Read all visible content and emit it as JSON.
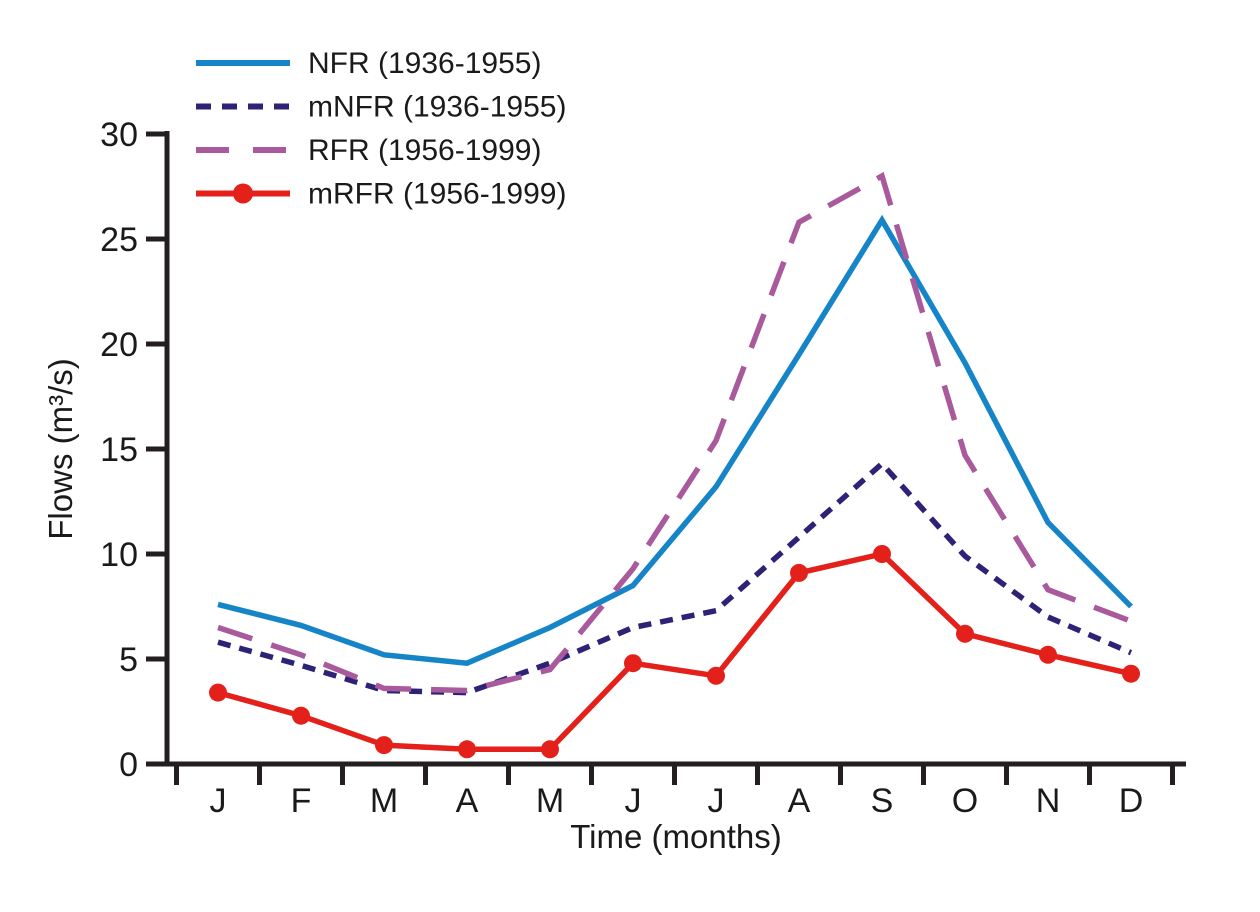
{
  "figure": {
    "background": "#ffffff",
    "axis_color": "#231F20",
    "text_color": "#1a1a1a"
  },
  "chart_data": {
    "type": "line",
    "title": "",
    "xlabel": "Time (months)",
    "ylabel": "Flows (m³/s)",
    "categories": [
      "J",
      "F",
      "M",
      "A",
      "M",
      "J",
      "J",
      "A",
      "S",
      "O",
      "N",
      "D"
    ],
    "yticks": [
      0,
      5,
      10,
      15,
      20,
      25,
      30
    ],
    "ylim": [
      0,
      30
    ],
    "grid": false,
    "legend_position": "top-left",
    "series": [
      {
        "name": "NFR (1936-1955)",
        "color": "#1585C8",
        "style": "solid",
        "marker": "none",
        "values": [
          7.6,
          6.6,
          5.2,
          4.8,
          6.5,
          8.5,
          13.2,
          19.5,
          25.9,
          19.1,
          11.5,
          7.5
        ]
      },
      {
        "name": "mNFR (1936-1955)",
        "color": "#2E2277",
        "style": "dashed",
        "marker": "none",
        "values": [
          5.8,
          4.7,
          3.5,
          3.4,
          4.8,
          6.5,
          7.3,
          10.8,
          14.3,
          9.9,
          7.0,
          5.3
        ]
      },
      {
        "name": "RFR (1956-1999)",
        "color": "#A85A9C",
        "style": "longdash",
        "marker": "none",
        "values": [
          6.5,
          5.2,
          3.6,
          3.5,
          4.5,
          9.3,
          15.4,
          25.8,
          28.0,
          14.7,
          8.3,
          6.8
        ]
      },
      {
        "name": "mRFR (1956-1999)",
        "color": "#E3211A",
        "style": "solid",
        "marker": "circle",
        "values": [
          3.4,
          2.3,
          0.9,
          0.7,
          0.7,
          4.8,
          4.2,
          9.1,
          10.0,
          6.2,
          5.2,
          4.3
        ]
      }
    ]
  }
}
